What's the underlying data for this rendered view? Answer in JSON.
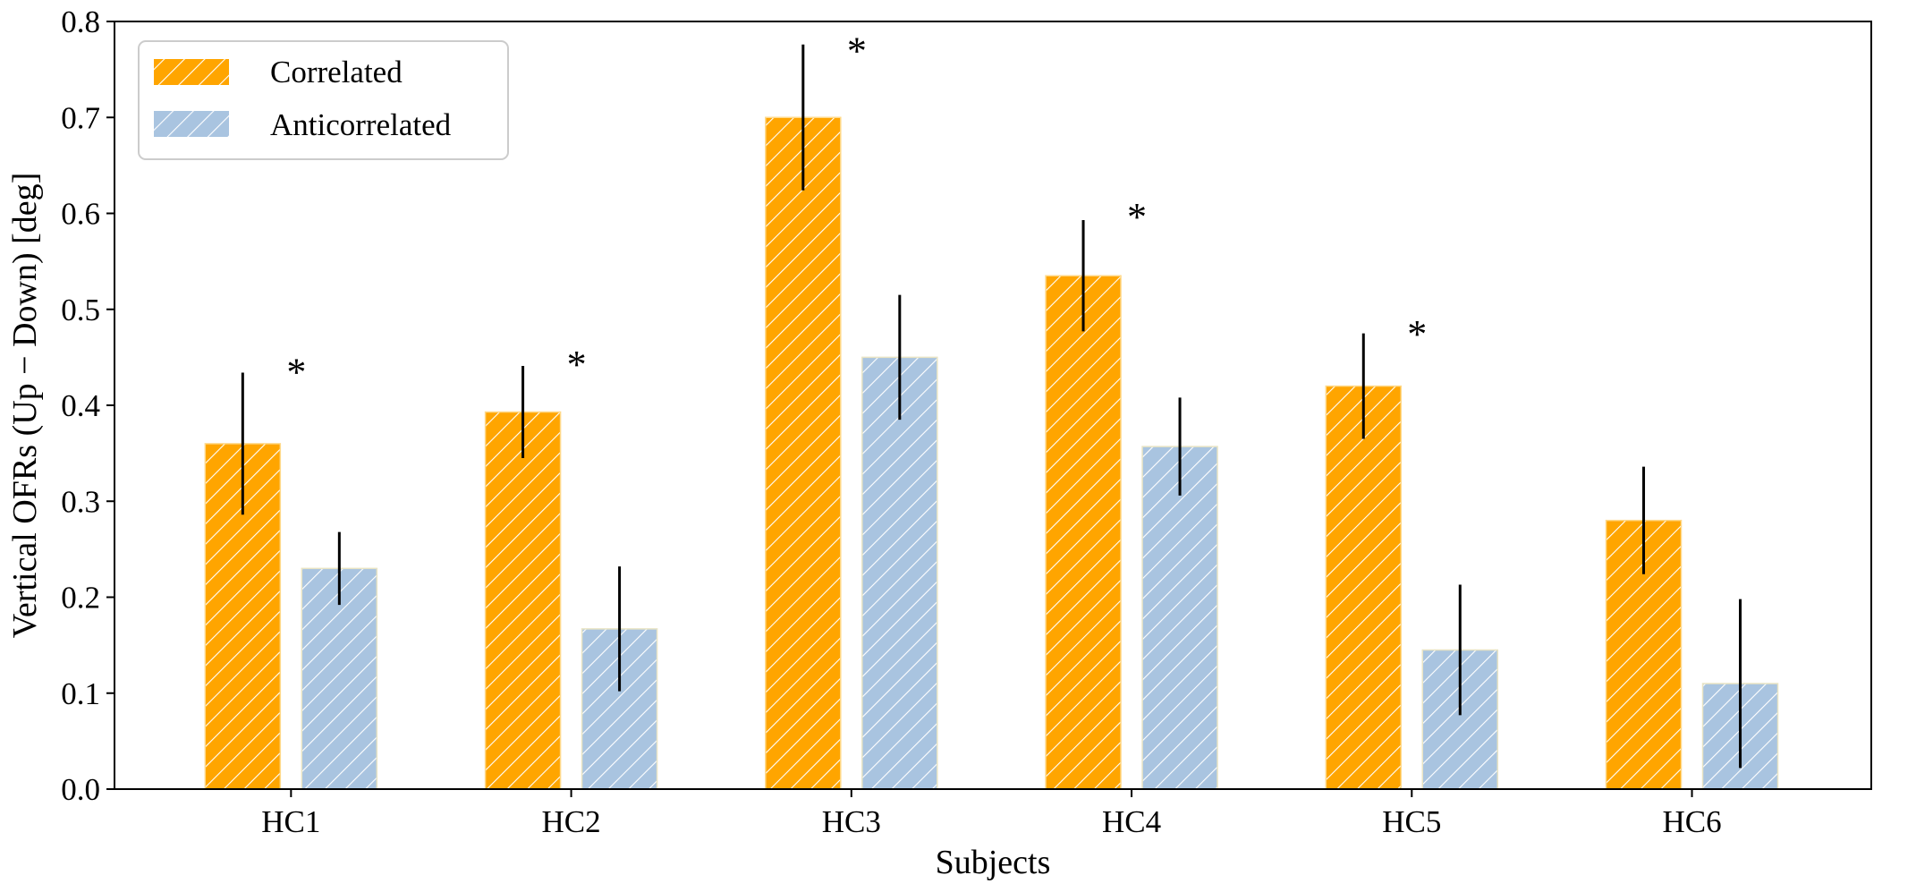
{
  "chart_data": {
    "type": "bar",
    "title": "",
    "xlabel": "Subjects",
    "ylabel": "Vertical OFRs (Up − Down) [deg]",
    "ylim": [
      0,
      0.8
    ],
    "yticks": [
      0.0,
      0.1,
      0.2,
      0.3,
      0.4,
      0.5,
      0.6,
      0.7,
      0.8
    ],
    "ytick_labels": [
      "0.0",
      "0.1",
      "0.2",
      "0.3",
      "0.4",
      "0.5",
      "0.6",
      "0.7",
      "0.8"
    ],
    "categories": [
      "HC1",
      "HC2",
      "HC3",
      "HC4",
      "HC5",
      "HC6"
    ],
    "series": [
      {
        "name": "Correlated",
        "color": "#FFA500",
        "hatch_color": "#FFFFFF",
        "values": [
          0.36,
          0.393,
          0.7,
          0.535,
          0.42,
          0.28
        ],
        "errors": [
          0.074,
          0.048,
          0.076,
          0.058,
          0.055,
          0.056
        ]
      },
      {
        "name": "Anticorrelated",
        "color": "#A9C4E0",
        "hatch_color": "#FFFFFF",
        "values": [
          0.23,
          0.167,
          0.45,
          0.357,
          0.145,
          0.11
        ],
        "errors": [
          0.038,
          0.065,
          0.065,
          0.051,
          0.068,
          0.088
        ]
      }
    ],
    "significance": {
      "symbol": "*",
      "categories": [
        "HC1",
        "HC2",
        "HC3",
        "HC4",
        "HC5"
      ],
      "values": [
        0.445,
        0.453,
        0.78,
        0.607,
        0.485
      ]
    },
    "legend": {
      "position": "top-left",
      "entries": [
        "Correlated",
        "Anticorrelated"
      ]
    },
    "grid": false
  }
}
